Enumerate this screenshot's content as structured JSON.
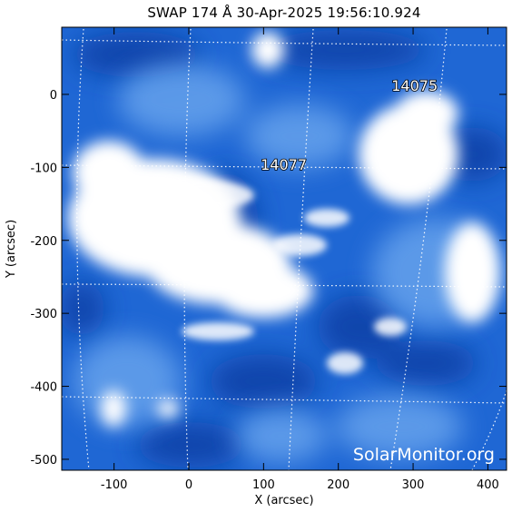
{
  "header": {
    "title": "SWAP 174 Å 30-Apr-2025 19:56:10.924"
  },
  "axes": {
    "xlabel": "X (arcsec)",
    "ylabel": "Y (arcsec)",
    "xlim": [
      -170,
      425
    ],
    "ylim": [
      -515,
      92
    ],
    "x_ticks": [
      "-100",
      "0",
      "100",
      "200",
      "300",
      "400"
    ],
    "y_ticks": [
      "0",
      "-100",
      "-200",
      "-300",
      "-400",
      "-500"
    ]
  },
  "active_regions": [
    {
      "label": "14075",
      "x": 302,
      "y": 5
    },
    {
      "label": "14077",
      "x": 127,
      "y": -103
    }
  ],
  "watermark": "SolarMonitor.org",
  "colors": {
    "background": "#ffffff",
    "image_base": "#1f67d4",
    "image_dark": "#0b3fa6",
    "image_bright": "#ffffff",
    "grid": "#ffffff"
  }
}
